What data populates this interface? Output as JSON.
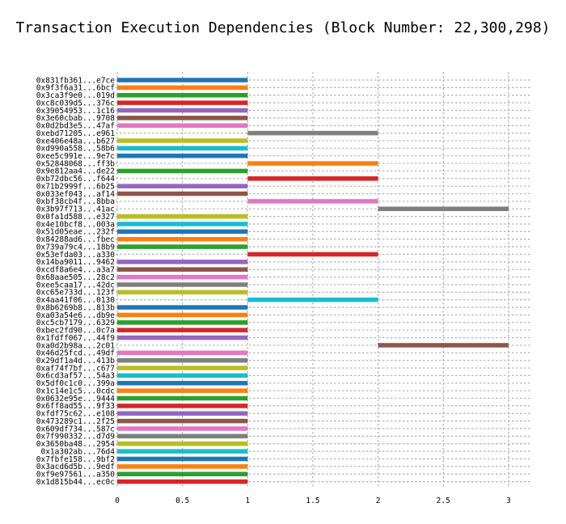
{
  "chart_data": {
    "type": "bar",
    "orientation": "horizontal-range",
    "title": "Transaction Execution Dependencies (Block Number: 22,300,298)",
    "xlabel": "",
    "ylabel": "",
    "xlim": [
      0,
      3.2
    ],
    "xticks": [
      0,
      0.5,
      1,
      1.5,
      2,
      2.5,
      3
    ],
    "xtick_labels": [
      "0",
      "0.5",
      "1",
      "1.5",
      "2",
      "2.5",
      "3"
    ],
    "grid": true,
    "palette": [
      "#1f77b4",
      "#ff7f0e",
      "#2ca02c",
      "#d62728",
      "#9467bd",
      "#8c564b",
      "#e377c2",
      "#7f7f7f",
      "#bcbd22",
      "#17becf"
    ],
    "transactions": [
      {
        "label": "0x831fb361...e7ce",
        "start": 0,
        "end": 1
      },
      {
        "label": "0x9f3f6a31...6bcf",
        "start": 0,
        "end": 1
      },
      {
        "label": "0x3ca3f9e0...019d",
        "start": 0,
        "end": 1
      },
      {
        "label": "0xc8c039d5...376c",
        "start": 0,
        "end": 1
      },
      {
        "label": "0x39054953...1c16",
        "start": 0,
        "end": 1
      },
      {
        "label": "0x3e60cbab...9708",
        "start": 0,
        "end": 1
      },
      {
        "label": "0x0d2bd3e5...47af",
        "start": 0,
        "end": 1
      },
      {
        "label": "0xebd71205...e961",
        "start": 1,
        "end": 2
      },
      {
        "label": "0xe406e48a...b627",
        "start": 0,
        "end": 1
      },
      {
        "label": "0xd990a558...58b6",
        "start": 0,
        "end": 1
      },
      {
        "label": "0xee5c991e...9e7c",
        "start": 0,
        "end": 1
      },
      {
        "label": "0x52848068...ff3b",
        "start": 1,
        "end": 2
      },
      {
        "label": "0x9e812aa4...de22",
        "start": 0,
        "end": 1
      },
      {
        "label": "0xb72dbc56...f644",
        "start": 1,
        "end": 2
      },
      {
        "label": "0x71b2999f...6b25",
        "start": 0,
        "end": 1
      },
      {
        "label": "0x033ef043...af14",
        "start": 0,
        "end": 1
      },
      {
        "label": "0xbf38cb4f...8bba",
        "start": 1,
        "end": 2
      },
      {
        "label": "0x3b97f713...41ac",
        "start": 2,
        "end": 3
      },
      {
        "label": "0x0fa1d588...e327",
        "start": 0,
        "end": 1
      },
      {
        "label": "0x4e10bcf8...003a",
        "start": 0,
        "end": 1
      },
      {
        "label": "0x51d05eae...232f",
        "start": 0,
        "end": 1
      },
      {
        "label": "0x84288ad6...fbec",
        "start": 0,
        "end": 1
      },
      {
        "label": "0x739a79c4...18b9",
        "start": 0,
        "end": 1
      },
      {
        "label": "0x53efda03...a330",
        "start": 1,
        "end": 2
      },
      {
        "label": "0x14ba9011...9462",
        "start": 0,
        "end": 1
      },
      {
        "label": "0xcdf8a6e4...a3a7",
        "start": 0,
        "end": 1
      },
      {
        "label": "0x68aae505...28c2",
        "start": 0,
        "end": 1
      },
      {
        "label": "0xee5caa17...42dc",
        "start": 0,
        "end": 1
      },
      {
        "label": "0xc65e733d...123f",
        "start": 0,
        "end": 1
      },
      {
        "label": "0x4aa41f06...0130",
        "start": 1,
        "end": 2
      },
      {
        "label": "0x8b6269b8...813b",
        "start": 0,
        "end": 1
      },
      {
        "label": "0xa03a54e6...db9e",
        "start": 0,
        "end": 1
      },
      {
        "label": "0xc5cb7179...6329",
        "start": 0,
        "end": 1
      },
      {
        "label": "0xbec2fd90...0c7a",
        "start": 0,
        "end": 1
      },
      {
        "label": "0x1fdff067...44f9",
        "start": 0,
        "end": 1
      },
      {
        "label": "0xa0d2b98a...2c01",
        "start": 2,
        "end": 3
      },
      {
        "label": "0x46d25fcd...49df",
        "start": 0,
        "end": 1
      },
      {
        "label": "0x29df1a4d...413b",
        "start": 0,
        "end": 1
      },
      {
        "label": "0xaf74f7bf...c677",
        "start": 0,
        "end": 1
      },
      {
        "label": "0x6cd3af57...54a3",
        "start": 0,
        "end": 1
      },
      {
        "label": "0x5df0c1c0...399a",
        "start": 0,
        "end": 1
      },
      {
        "label": "0x1c14e1c5...0cdc",
        "start": 0,
        "end": 1
      },
      {
        "label": "0x0632e95e...9444",
        "start": 0,
        "end": 1
      },
      {
        "label": "0x6ff8ad55...9f33",
        "start": 0,
        "end": 1
      },
      {
        "label": "0xfdf75c62...e108",
        "start": 0,
        "end": 1
      },
      {
        "label": "0x473289c1...2f25",
        "start": 0,
        "end": 1
      },
      {
        "label": "0x609df734...587c",
        "start": 0,
        "end": 1
      },
      {
        "label": "0x7f990332...d7d9",
        "start": 0,
        "end": 1
      },
      {
        "label": "0x3650ba48...2954",
        "start": 0,
        "end": 1
      },
      {
        "label": "0x1a302ab...76d4",
        "start": 0,
        "end": 1
      },
      {
        "label": "0x7fbfe158...9bf2",
        "start": 0,
        "end": 1
      },
      {
        "label": "0x3acd6d5b...9edf",
        "start": 0,
        "end": 1
      },
      {
        "label": "0xf9e97561...a350",
        "start": 0,
        "end": 1
      },
      {
        "label": "0x1d815b44...ec0c",
        "start": 0,
        "end": 1
      }
    ]
  }
}
